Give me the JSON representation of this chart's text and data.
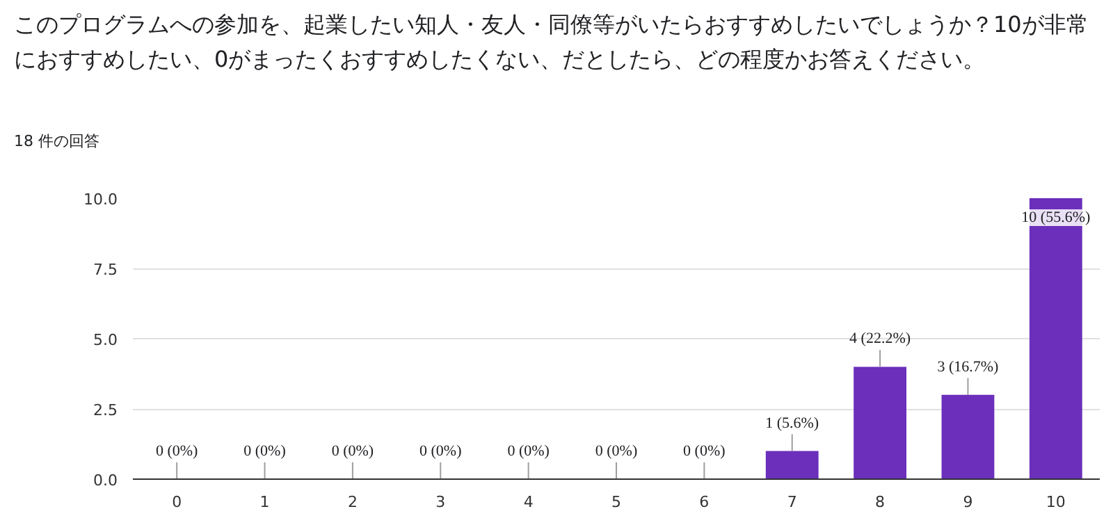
{
  "chart_data": {
    "type": "bar",
    "title": "このプログラムへの参加を、起業したい知人・友人・同僚等がいたらおすすめしたいでしょうか？10が非常におすすめしたい、0がまったくおすすめしたくない、だとしたら、どの程度かお答えください。",
    "subtitle": "18 件の回答",
    "categories": [
      "0",
      "1",
      "2",
      "3",
      "4",
      "5",
      "6",
      "7",
      "8",
      "9",
      "10"
    ],
    "values": [
      0,
      0,
      0,
      0,
      0,
      0,
      0,
      1,
      4,
      3,
      10
    ],
    "value_labels": [
      "0 (0%)",
      "0 (0%)",
      "0 (0%)",
      "0 (0%)",
      "0 (0%)",
      "0 (0%)",
      "0 (0%)",
      "1 (5.6%)",
      "4 (22.2%)",
      "3 (16.7%)",
      "10 (55.6%)"
    ],
    "color": "#6b2fbb",
    "ylim": [
      0,
      10
    ],
    "yticks": [
      {
        "value": 0,
        "label": "0.0"
      },
      {
        "value": 2.5,
        "label": "2.5"
      },
      {
        "value": 5,
        "label": "5.0"
      },
      {
        "value": 7.5,
        "label": "7.5"
      },
      {
        "value": 10,
        "label": "10.0"
      }
    ],
    "grid": "y"
  }
}
